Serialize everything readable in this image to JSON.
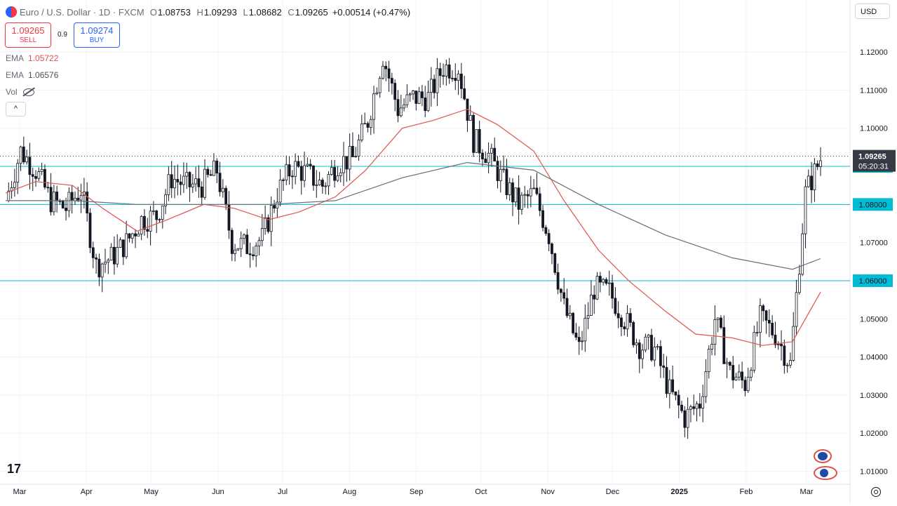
{
  "header": {
    "symbol": "Euro / U.S. Dollar · 1D · FXCM",
    "open_label": "O",
    "open": "1.08753",
    "high_label": "H",
    "high": "1.09293",
    "low_label": "L",
    "low": "1.08682",
    "close_label": "C",
    "close": "1.09265",
    "change": "+0.00514 (+0.47%)"
  },
  "trade": {
    "sell_price": "1.09265",
    "sell_label": "SELL",
    "spread": "0.9",
    "buy_price": "1.09274",
    "buy_label": "BUY"
  },
  "indicators": [
    {
      "name": "EMA",
      "value": "1.05722",
      "color": "#e0524e"
    },
    {
      "name": "EMA",
      "value": "1.06576",
      "color": "#50535e"
    }
  ],
  "vol_label": "Vol",
  "collapse_glyph": "^",
  "currency": "USD",
  "logo_text": "17",
  "price_tag": {
    "price": "1.09265",
    "countdown": "05:20:31",
    "color": "#363a45"
  },
  "colors": {
    "candle": "#131722",
    "ema_fast": "#e0524e",
    "ema_slow": "#6a6d78",
    "level": "#00bcd4",
    "grid": "#f0f3fa"
  },
  "chart_data": {
    "type": "candlestick",
    "title": "",
    "xlabel": "",
    "ylabel": "",
    "ylim": [
      1.0,
      1.125
    ],
    "y_ticks": [
      "1.12000",
      "1.11000",
      "1.10000",
      "1.09000",
      "1.08000",
      "1.07000",
      "1.06000",
      "1.05000",
      "1.04000",
      "1.03000",
      "1.02000",
      "1.01000"
    ],
    "x_ticks": [
      "Mar",
      "Apr",
      "May",
      "Jun",
      "Jul",
      "Aug",
      "Sep",
      "Oct",
      "Nov",
      "Dec",
      "2025",
      "Feb",
      "Mar"
    ],
    "horizontal_levels": [
      "1.09000",
      "1.08000",
      "1.06000"
    ],
    "last_close": 1.09265,
    "close_path": [
      [
        "2024-03-01",
        1.081
      ],
      [
        "2024-03-08",
        1.094
      ],
      [
        "2024-03-15",
        1.089
      ],
      [
        "2024-03-22",
        1.081
      ],
      [
        "2024-03-29",
        1.079
      ],
      [
        "2024-04-05",
        1.084
      ],
      [
        "2024-04-12",
        1.064
      ],
      [
        "2024-04-19",
        1.066
      ],
      [
        "2024-04-26",
        1.07
      ],
      [
        "2024-05-03",
        1.076
      ],
      [
        "2024-05-10",
        1.077
      ],
      [
        "2024-05-17",
        1.087
      ],
      [
        "2024-05-24",
        1.085
      ],
      [
        "2024-05-31",
        1.085
      ],
      [
        "2024-06-07",
        1.089
      ],
      [
        "2024-06-14",
        1.07
      ],
      [
        "2024-06-21",
        1.069
      ],
      [
        "2024-06-28",
        1.071
      ],
      [
        "2024-07-05",
        1.083
      ],
      [
        "2024-07-12",
        1.09
      ],
      [
        "2024-07-19",
        1.088
      ],
      [
        "2024-07-26",
        1.085
      ],
      [
        "2024-08-02",
        1.091
      ],
      [
        "2024-08-09",
        1.092
      ],
      [
        "2024-08-16",
        1.102
      ],
      [
        "2024-08-23",
        1.119
      ],
      [
        "2024-08-30",
        1.105
      ],
      [
        "2024-09-06",
        1.108
      ],
      [
        "2024-09-13",
        1.108
      ],
      [
        "2024-09-20",
        1.116
      ],
      [
        "2024-09-27",
        1.116
      ],
      [
        "2024-10-04",
        1.097
      ],
      [
        "2024-10-11",
        1.093
      ],
      [
        "2024-10-18",
        1.086
      ],
      [
        "2024-10-25",
        1.08
      ],
      [
        "2024-11-01",
        1.083
      ],
      [
        "2024-11-08",
        1.072
      ],
      [
        "2024-11-15",
        1.053
      ],
      [
        "2024-11-22",
        1.042
      ],
      [
        "2024-11-29",
        1.058
      ],
      [
        "2024-12-06",
        1.057
      ],
      [
        "2024-12-13",
        1.05
      ],
      [
        "2024-12-20",
        1.043
      ],
      [
        "2024-12-27",
        1.042
      ],
      [
        "2025-01-03",
        1.031
      ],
      [
        "2025-01-10",
        1.024
      ],
      [
        "2025-01-17",
        1.028
      ],
      [
        "2025-01-24",
        1.05
      ],
      [
        "2025-01-31",
        1.036
      ],
      [
        "2025-02-07",
        1.033
      ],
      [
        "2025-02-14",
        1.05
      ],
      [
        "2025-02-21",
        1.046
      ],
      [
        "2025-02-28",
        1.038
      ],
      [
        "2025-03-07",
        1.083
      ],
      [
        "2025-03-14",
        1.092
      ]
    ],
    "series": [
      {
        "name": "EMA",
        "type": "line",
        "color": "#e0524e",
        "values": [
          [
            "2024-03-01",
            1.083
          ],
          [
            "2024-03-15",
            1.086
          ],
          [
            "2024-04-01",
            1.085
          ],
          [
            "2024-04-15",
            1.079
          ],
          [
            "2024-05-01",
            1.073
          ],
          [
            "2024-05-15",
            1.076
          ],
          [
            "2024-06-01",
            1.08
          ],
          [
            "2024-06-15",
            1.079
          ],
          [
            "2024-07-01",
            1.076
          ],
          [
            "2024-07-15",
            1.078
          ],
          [
            "2024-08-01",
            1.082
          ],
          [
            "2024-08-15",
            1.089
          ],
          [
            "2024-09-01",
            1.1
          ],
          [
            "2024-09-15",
            1.102
          ],
          [
            "2024-10-01",
            1.105
          ],
          [
            "2024-10-15",
            1.101
          ],
          [
            "2024-11-01",
            1.094
          ],
          [
            "2024-11-15",
            1.081
          ],
          [
            "2024-12-01",
            1.068
          ],
          [
            "2024-12-15",
            1.06
          ],
          [
            "2025-01-01",
            1.052
          ],
          [
            "2025-01-15",
            1.046
          ],
          [
            "2025-02-01",
            1.045
          ],
          [
            "2025-02-15",
            1.043
          ],
          [
            "2025-03-01",
            1.044
          ],
          [
            "2025-03-14",
            1.057
          ]
        ]
      },
      {
        "name": "EMA",
        "type": "line",
        "color": "#6a6d78",
        "values": [
          [
            "2024-03-01",
            1.081
          ],
          [
            "2024-04-01",
            1.081
          ],
          [
            "2024-05-01",
            1.08
          ],
          [
            "2024-06-01",
            1.08
          ],
          [
            "2024-07-01",
            1.08
          ],
          [
            "2024-08-01",
            1.081
          ],
          [
            "2024-09-01",
            1.087
          ],
          [
            "2024-10-01",
            1.091
          ],
          [
            "2024-11-01",
            1.089
          ],
          [
            "2024-12-01",
            1.08
          ],
          [
            "2025-01-01",
            1.072
          ],
          [
            "2025-02-01",
            1.066
          ],
          [
            "2025-03-01",
            1.063
          ],
          [
            "2025-03-14",
            1.0658
          ]
        ]
      }
    ]
  }
}
